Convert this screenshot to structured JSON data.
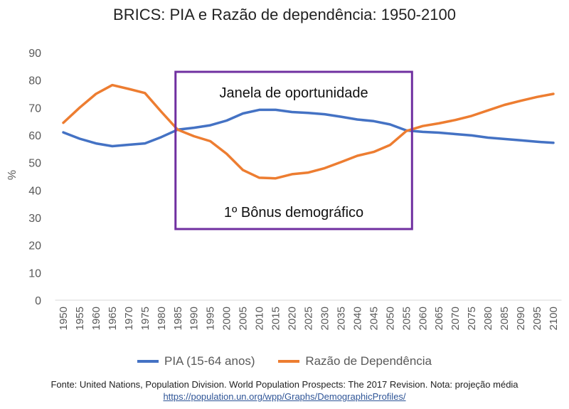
{
  "chart_data": {
    "type": "line",
    "title": "BRICS: PIA e Razão de dependência: 1950-2100",
    "xlabel": "",
    "ylabel": "%",
    "ylim": [
      0,
      90
    ],
    "yticks": [
      0,
      10,
      20,
      30,
      40,
      50,
      60,
      70,
      80,
      90
    ],
    "grid": false,
    "legend_position": "bottom",
    "x": [
      "1950",
      "1955",
      "1960",
      "1965",
      "1970",
      "1975",
      "1980",
      "1985",
      "1990",
      "1995",
      "2000",
      "2005",
      "2010",
      "2015",
      "2020",
      "2025",
      "2030",
      "2035",
      "2040",
      "2045",
      "2050",
      "2055",
      "2060",
      "2065",
      "2070",
      "2075",
      "2080",
      "2085",
      "2090",
      "2095",
      "2100"
    ],
    "series": [
      {
        "name": "PIA (15-64 anos)",
        "color": "#4472c4",
        "values": [
          61.0,
          58.7,
          57.0,
          56.0,
          56.5,
          57.0,
          59.3,
          62.0,
          62.7,
          63.6,
          65.3,
          67.9,
          69.2,
          69.2,
          68.4,
          68.1,
          67.6,
          66.7,
          65.7,
          65.1,
          63.9,
          61.7,
          61.2,
          60.9,
          60.4,
          59.9,
          59.1,
          58.6,
          58.1,
          57.6,
          57.2
        ]
      },
      {
        "name": "Razão de Dependência",
        "color": "#ed7d31",
        "values": [
          64.5,
          70.0,
          75.0,
          78.2,
          76.8,
          75.3,
          68.5,
          62.0,
          59.6,
          57.8,
          53.2,
          47.3,
          44.5,
          44.3,
          45.8,
          46.4,
          48.0,
          50.2,
          52.5,
          53.9,
          56.4,
          61.5,
          63.3,
          64.3,
          65.5,
          67.0,
          69.0,
          71.0,
          72.5,
          73.9,
          75.0
        ]
      }
    ],
    "annotations": [
      "Janela de oportunidade",
      "1º Bônus demográfico"
    ],
    "highlight_box": {
      "x_from": "1985",
      "x_to": "2055",
      "color": "#7030a0"
    }
  },
  "source": {
    "text": "Fonte: United Nations, Population Division. World Population Prospects: The 2017 Revision. Nota: projeção média",
    "url": "https://population.un.org/wpp/Graphs/DemographicProfiles/"
  }
}
